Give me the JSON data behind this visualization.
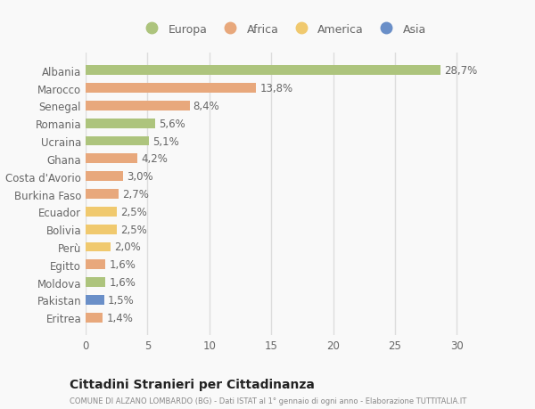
{
  "categories": [
    "Albania",
    "Marocco",
    "Senegal",
    "Romania",
    "Ucraina",
    "Ghana",
    "Costa d'Avorio",
    "Burkina Faso",
    "Ecuador",
    "Bolivia",
    "Perù",
    "Egitto",
    "Moldova",
    "Pakistan",
    "Eritrea"
  ],
  "values": [
    28.7,
    13.8,
    8.4,
    5.6,
    5.1,
    4.2,
    3.0,
    2.7,
    2.5,
    2.5,
    2.0,
    1.6,
    1.6,
    1.5,
    1.4
  ],
  "labels": [
    "28,7%",
    "13,8%",
    "8,4%",
    "5,6%",
    "5,1%",
    "4,2%",
    "3,0%",
    "2,7%",
    "2,5%",
    "2,5%",
    "2,0%",
    "1,6%",
    "1,6%",
    "1,5%",
    "1,4%"
  ],
  "continents": [
    "Europa",
    "Africa",
    "Africa",
    "Europa",
    "Europa",
    "Africa",
    "Africa",
    "Africa",
    "America",
    "America",
    "America",
    "Africa",
    "Europa",
    "Asia",
    "Africa"
  ],
  "colors": {
    "Europa": "#adc47d",
    "Africa": "#e8a87c",
    "America": "#f0c96e",
    "Asia": "#6a8fc8"
  },
  "xlim": [
    0,
    32
  ],
  "xticks": [
    0,
    5,
    10,
    15,
    20,
    25,
    30
  ],
  "title": "Cittadini Stranieri per Cittadinanza",
  "subtitle": "COMUNE DI ALZANO LOMBARDO (BG) - Dati ISTAT al 1° gennaio di ogni anno - Elaborazione TUTTITALIA.IT",
  "background_color": "#f9f9f9",
  "bar_height": 0.55,
  "grid_color": "#dddddd",
  "label_fontsize": 8.5,
  "tick_fontsize": 8.5,
  "legend_order": [
    "Europa",
    "Africa",
    "America",
    "Asia"
  ]
}
